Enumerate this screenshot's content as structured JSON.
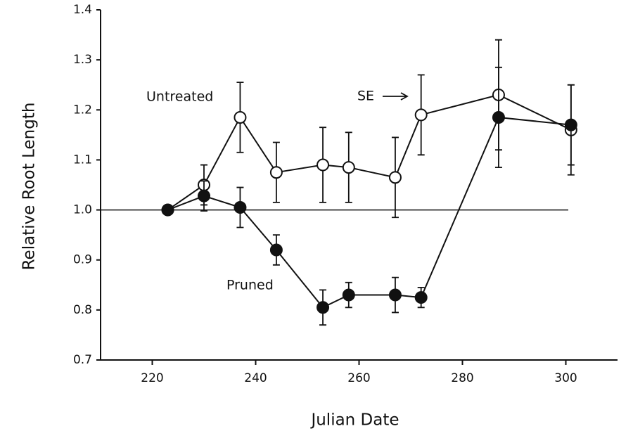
{
  "chart_data": {
    "type": "line",
    "x_label": "Julian Date",
    "y_label": "Relative Root Length",
    "xlim": [
      210,
      310
    ],
    "xticks": [
      220,
      240,
      260,
      280,
      300
    ],
    "ylim": [
      0.7,
      1.4
    ],
    "yticks": [
      0.7,
      0.8,
      0.9,
      {
        "value": 1,
        "label": "1.0"
      },
      1.1,
      1.2,
      1.3,
      1.4
    ],
    "reference_line": 1,
    "annotations": [
      "Untreated",
      "Pruned",
      "SE"
    ],
    "series": [
      {
        "name": "Untreated",
        "color": "#111111",
        "marker": "open",
        "x": [
          223,
          230,
          237,
          244,
          253,
          258,
          267,
          272,
          287,
          301
        ],
        "values": [
          1.0,
          1.05,
          1.185,
          1.075,
          1.09,
          1.085,
          1.065,
          1.19,
          1.23,
          1.16
        ],
        "errors": [
          null,
          0.04,
          0.07,
          0.06,
          0.075,
          0.07,
          0.08,
          0.08,
          0.11,
          0.09
        ]
      },
      {
        "name": "Pruned",
        "color": "#111111",
        "marker": "filled",
        "x": [
          223,
          230,
          237,
          244,
          253,
          258,
          267,
          272,
          287,
          301
        ],
        "values": [
          1.0,
          1.028,
          1.005,
          0.92,
          0.805,
          0.83,
          0.83,
          0.825,
          1.185,
          1.17
        ],
        "errors": [
          null,
          0.03,
          0.04,
          0.03,
          0.035,
          0.025,
          0.035,
          0.02,
          0.1,
          0.08
        ]
      }
    ]
  }
}
